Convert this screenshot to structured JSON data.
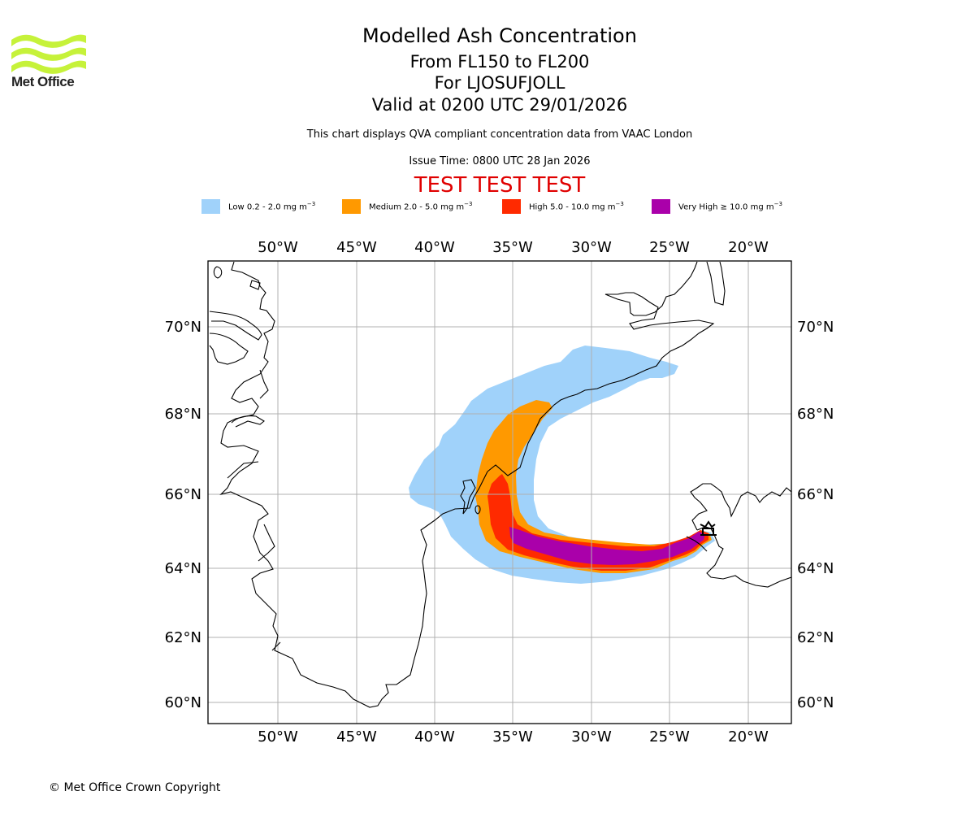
{
  "logo": {
    "text": "Met Office",
    "color": "#c6f23a"
  },
  "header": {
    "title": "Modelled Ash Concentration",
    "flight_levels": "From FL150 to FL200",
    "volcano": "For LJOSUFJOLL",
    "valid": "Valid at 0200 UTC 29/01/2026",
    "description": "This chart displays QVA compliant concentration data from VAAC London",
    "issue_time": "Issue Time: 0800 UTC 28 Jan 2026",
    "test_banner": "TEST TEST TEST",
    "test_color": "#e00000"
  },
  "legend": [
    {
      "label": "Low 0.2 - 2.0 mg m",
      "unit_exp": "−3",
      "color": "#a0d2fa"
    },
    {
      "label": "Medium 2.0 - 5.0 mg m",
      "unit_exp": "−3",
      "color": "#ff9900"
    },
    {
      "label": "High 5.0 - 10.0 mg m",
      "unit_exp": "−3",
      "color": "#ff2a00"
    },
    {
      "label": "Very High  ≥  10.0 mg m",
      "unit_exp": "−3",
      "color": "#aa00aa"
    }
  ],
  "chart_data": {
    "type": "map",
    "title": "Modelled Ash Concentration",
    "lon_range": [
      -54.5,
      -17.3
    ],
    "lat_range": [
      59.5,
      71.5
    ],
    "x_ticks": [
      {
        "value": -50,
        "label": "50°W"
      },
      {
        "value": -45,
        "label": "45°W"
      },
      {
        "value": -40,
        "label": "40°W"
      },
      {
        "value": -35,
        "label": "35°W"
      },
      {
        "value": -30,
        "label": "30°W"
      },
      {
        "value": -25,
        "label": "25°W"
      },
      {
        "value": -20,
        "label": "20°W"
      }
    ],
    "y_ticks": [
      {
        "value": 70,
        "label": "70°N"
      },
      {
        "value": 68,
        "label": "68°N"
      },
      {
        "value": 66,
        "label": "66°N"
      },
      {
        "value": 64,
        "label": "64°N"
      },
      {
        "value": 62,
        "label": "62°N"
      },
      {
        "value": 60,
        "label": "60°N"
      }
    ],
    "grid": true,
    "source_location": {
      "name": "LJOSUFJOLL",
      "lon": -22.6,
      "lat": 64.9
    },
    "plume_levels": [
      "Low",
      "Medium",
      "High",
      "Very High"
    ]
  },
  "footer": {
    "copyright": "© Met Office Crown Copyright"
  }
}
